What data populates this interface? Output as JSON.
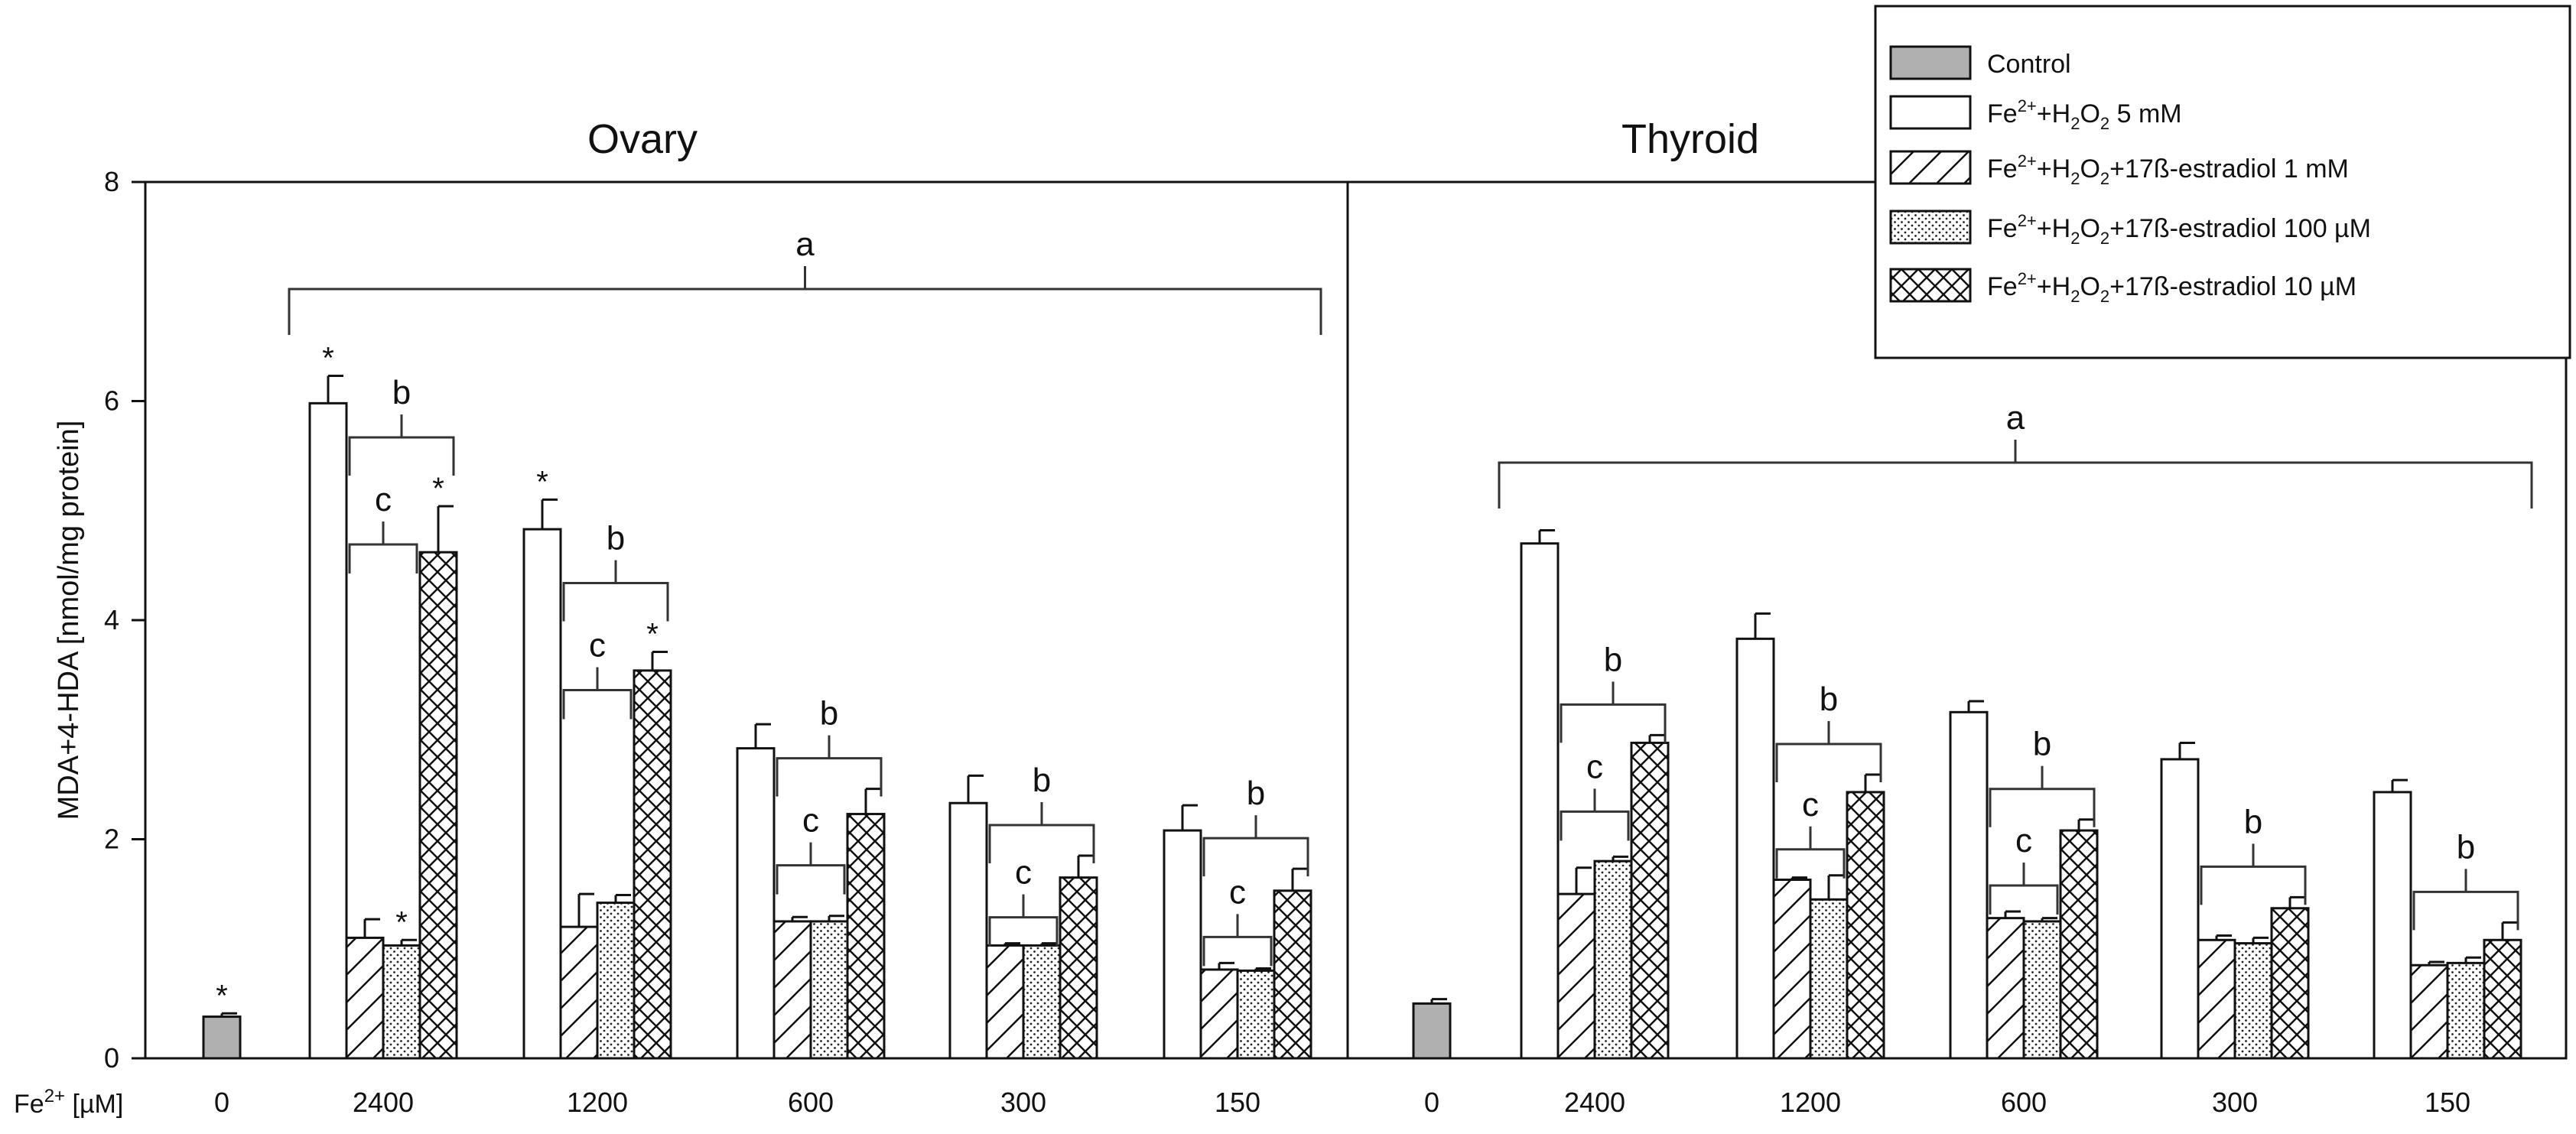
{
  "chart_data": {
    "type": "bar",
    "ylabel": "MDA+4-HDA [nmol/mg protein]",
    "ylim": [
      0,
      8
    ],
    "yticks": [
      0,
      2,
      4,
      6,
      8
    ],
    "xaxis_prefix": "Fe",
    "xaxis_sup": "2+",
    "xaxis_unit": "[µM]",
    "legend_position": "top-right",
    "series": [
      {
        "name": "Control",
        "pattern": "gray",
        "color": "#b0b0b0",
        "parts": [
          {
            "t": "Control"
          }
        ]
      },
      {
        "name": "Fe2+ + H2O2 5 mM",
        "pattern": "white",
        "color": "#ffffff",
        "parts": [
          {
            "t": "Fe"
          },
          {
            "t": "2+",
            "k": "sup"
          },
          {
            "t": "+H"
          },
          {
            "t": "2",
            "k": "sub"
          },
          {
            "t": "O"
          },
          {
            "t": "2",
            "k": "sub"
          },
          {
            "t": " 5 mM"
          }
        ]
      },
      {
        "name": "Fe2+ + H2O2 + 17ß-estradiol 1 mM",
        "pattern": "diag",
        "color": "#ffffff",
        "parts": [
          {
            "t": "Fe"
          },
          {
            "t": "2+",
            "k": "sup"
          },
          {
            "t": "+H"
          },
          {
            "t": "2",
            "k": "sub"
          },
          {
            "t": "O"
          },
          {
            "t": "2",
            "k": "sub"
          },
          {
            "t": "+17ß-estradiol 1 mM"
          }
        ]
      },
      {
        "name": "Fe2+ + H2O2 + 17ß-estradiol 100 µM",
        "pattern": "dots",
        "color": "#ffffff",
        "parts": [
          {
            "t": "Fe"
          },
          {
            "t": "2+",
            "k": "sup"
          },
          {
            "t": "+H"
          },
          {
            "t": "2",
            "k": "sub"
          },
          {
            "t": "O"
          },
          {
            "t": "2",
            "k": "sub"
          },
          {
            "t": "+17ß-estradiol 100 µM"
          }
        ]
      },
      {
        "name": "Fe2+ + H2O2 + 17ß-estradiol 10 µM",
        "pattern": "cross",
        "color": "#ffffff",
        "parts": [
          {
            "t": "Fe"
          },
          {
            "t": "2+",
            "k": "sup"
          },
          {
            "t": "+H"
          },
          {
            "t": "2",
            "k": "sub"
          },
          {
            "t": "O"
          },
          {
            "t": "2",
            "k": "sub"
          },
          {
            "t": "+17ß-estradiol 10 µM"
          }
        ]
      }
    ],
    "panels": [
      {
        "title": "Ovary",
        "control": {
          "label": "0",
          "value": 0.38,
          "err": 0.03,
          "star": true
        },
        "overall_letter": "a",
        "groups": [
          {
            "label": "2400",
            "values": [
              5.98,
              1.1,
              1.03,
              4.62
            ],
            "errors": [
              0.25,
              0.17,
              0.05,
              0.42
            ],
            "stars": [
              true,
              false,
              true,
              true
            ],
            "letter_c": "c",
            "letter_b": "b"
          },
          {
            "label": "1200",
            "values": [
              4.83,
              1.2,
              1.42,
              3.54
            ],
            "errors": [
              0.27,
              0.3,
              0.07,
              0.17
            ],
            "stars": [
              true,
              false,
              false,
              true
            ],
            "letter_c": "c",
            "letter_b": "b"
          },
          {
            "label": "600",
            "values": [
              2.83,
              1.25,
              1.25,
              2.23
            ],
            "errors": [
              0.22,
              0.04,
              0.05,
              0.23
            ],
            "stars": [
              false,
              false,
              false,
              false
            ],
            "letter_c": "c",
            "letter_b": "b"
          },
          {
            "label": "300",
            "values": [
              2.33,
              1.03,
              1.03,
              1.65
            ],
            "errors": [
              0.25,
              0.02,
              0.02,
              0.2
            ],
            "stars": [
              false,
              false,
              false,
              false
            ],
            "letter_c": "c",
            "letter_b": "b"
          },
          {
            "label": "150",
            "values": [
              2.08,
              0.81,
              0.8,
              1.53
            ],
            "errors": [
              0.23,
              0.06,
              0.02,
              0.2
            ],
            "stars": [
              false,
              false,
              false,
              false
            ],
            "letter_c": "c",
            "letter_b": "b"
          }
        ]
      },
      {
        "title": "Thyroid",
        "control": {
          "label": "0",
          "value": 0.5,
          "err": 0.04,
          "star": false
        },
        "overall_letter": "a",
        "groups": [
          {
            "label": "2400",
            "values": [
              4.7,
              1.5,
              1.8,
              2.88
            ],
            "errors": [
              0.12,
              0.24,
              0.04,
              0.07
            ],
            "stars": [
              false,
              false,
              false,
              false
            ],
            "letter_c": "c",
            "letter_b": "b"
          },
          {
            "label": "1200",
            "values": [
              3.83,
              1.63,
              1.45,
              2.43
            ],
            "errors": [
              0.23,
              0.02,
              0.22,
              0.16
            ],
            "stars": [
              false,
              false,
              false,
              false
            ],
            "letter_c": "c",
            "letter_b": "b"
          },
          {
            "label": "600",
            "values": [
              3.16,
              1.28,
              1.25,
              2.08
            ],
            "errors": [
              0.1,
              0.06,
              0.03,
              0.1
            ],
            "stars": [
              false,
              false,
              false,
              false
            ],
            "letter_c": "c",
            "letter_b": "b"
          },
          {
            "label": "300",
            "values": [
              2.73,
              1.08,
              1.05,
              1.37
            ],
            "errors": [
              0.15,
              0.04,
              0.05,
              0.1
            ],
            "stars": [
              false,
              false,
              false,
              false
            ],
            "letter_c": null,
            "letter_b": "b"
          },
          {
            "label": "150",
            "values": [
              2.43,
              0.85,
              0.87,
              1.08
            ],
            "errors": [
              0.11,
              0.03,
              0.05,
              0.16
            ],
            "stars": [
              false,
              false,
              false,
              false
            ],
            "letter_c": null,
            "letter_b": "b"
          }
        ]
      }
    ]
  }
}
